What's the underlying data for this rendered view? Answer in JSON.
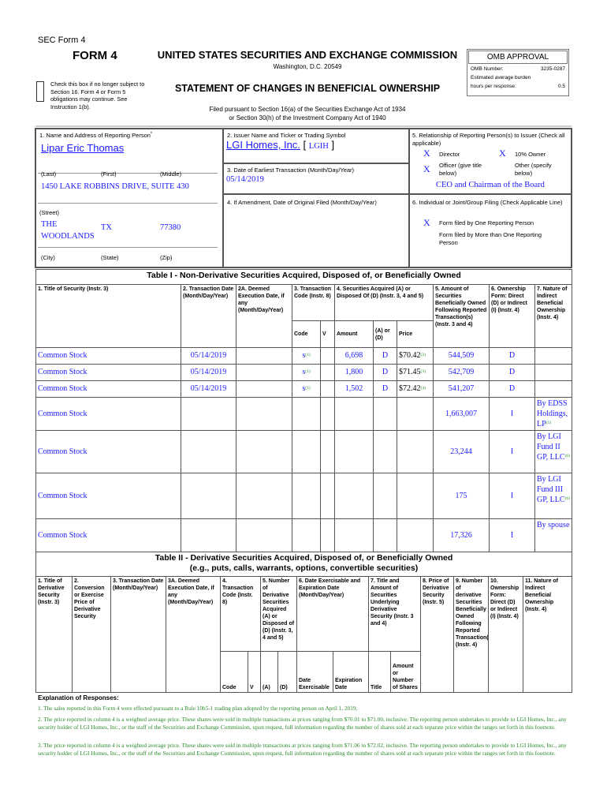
{
  "header": {
    "sec_form": "SEC Form 4",
    "form_title": "FORM 4",
    "agency": "UNITED STATES SECURITIES AND EXCHANGE COMMISSION",
    "location": "Washington, D.C. 20549",
    "statement_title": "STATEMENT OF CHANGES IN BENEFICIAL OWNERSHIP",
    "filed_line1": "Filed pursuant to Section 16(a) of the Securities Exchange Act of 1934",
    "filed_line2": "or Section 30(h) of the Investment Company Act of 1940",
    "checkbox_text": "Check this box if no longer subject to Section 16. Form 4 or Form 5 obligations may continue. See Instruction 1(b).",
    "omb": {
      "title": "OMB APPROVAL",
      "number_label": "OMB Number:",
      "number_value": "3235-0287",
      "burden_label": "Estimated average burden",
      "hours_label": "hours per response:",
      "hours_value": "0.5"
    }
  },
  "reporting_person": {
    "label": "1. Name and Address of Reporting Person",
    "label_mark": "*",
    "name": "Lipar Eric Thomas",
    "last_label": "(Last)",
    "first_label": "(First)",
    "middle_label": "(Middle)",
    "street": "1450 LAKE ROBBINS DRIVE, SUITE 430",
    "street_label": "(Street)",
    "city": "THE WOODLANDS",
    "state": "TX",
    "zip": "77380",
    "city_label": "(City)",
    "state_label": "(State)",
    "zip_label": "(Zip)"
  },
  "issuer": {
    "label": "2. Issuer Name and Ticker or Trading Symbol",
    "name": "LGI Homes, Inc.",
    "ticker": "LGIH",
    "date_label": "3. Date of Earliest Transaction (Month/Day/Year)",
    "date": "05/14/2019",
    "amendment_label": "4. If Amendment, Date of Original Filed (Month/Day/Year)"
  },
  "relationship": {
    "label": "5. Relationship of Reporting Person(s) to Issuer (Check all applicable)",
    "director": "Director",
    "owner10": "10% Owner",
    "officer": "Officer (give title below)",
    "other": "Other (specify below)",
    "mark": "X",
    "officer_title": "CEO and Chairman of the Board",
    "filing_label": "6. Individual or Joint/Group Filing (Check Applicable Line)",
    "filing_one": "Form filed by One Reporting Person",
    "filing_more": "Form filed by More than One Reporting Person"
  },
  "table1": {
    "title": "Table I - Non-Derivative Securities Acquired, Disposed of, or Beneficially Owned",
    "headers": {
      "c1": "1. Title of Security (Instr. 3)",
      "c2": "2. Transaction Date (Month/Day/Year)",
      "c2a": "2A. Deemed Execution Date, if any (Month/Day/Year)",
      "c3": "3. Transaction Code (Instr. 8)",
      "c4": "4. Securities Acquired (A) or Disposed Of (D) (Instr. 3, 4 and 5)",
      "c5": "5. Amount of Securities Beneficially Owned Following Reported Transaction(s) (Instr. 3 and 4)",
      "c6": "6. Ownership Form: Direct (D) or Indirect (I) (Instr. 4)",
      "c7": "7. Nature of Indirect Beneficial Ownership (Instr. 4)",
      "code": "Code",
      "v": "V",
      "amount": "Amount",
      "ad": "(A) or (D)",
      "price": "Price"
    },
    "rows": [
      {
        "title": "Common Stock",
        "date": "05/14/2019",
        "code": "S",
        "code_fn": "(1)",
        "amount": "6,698",
        "ad": "D",
        "price": "$70.42",
        "price_fn": "(2)",
        "owned": "544,509",
        "form": "D",
        "nature": "",
        "nature_fn": ""
      },
      {
        "title": "Common Stock",
        "date": "05/14/2019",
        "code": "S",
        "code_fn": "(1)",
        "amount": "1,800",
        "ad": "D",
        "price": "$71.45",
        "price_fn": "(3)",
        "owned": "542,709",
        "form": "D",
        "nature": "",
        "nature_fn": ""
      },
      {
        "title": "Common Stock",
        "date": "05/14/2019",
        "code": "S",
        "code_fn": "(1)",
        "amount": "1,502",
        "ad": "D",
        "price": "$72.42",
        "price_fn": "(4)",
        "owned": "541,207",
        "form": "D",
        "nature": "",
        "nature_fn": ""
      },
      {
        "title": "Common Stock",
        "date": "",
        "code": "",
        "code_fn": "",
        "amount": "",
        "ad": "",
        "price": "",
        "price_fn": "",
        "owned": "1,663,007",
        "form": "I",
        "nature": "By EDSS Holdings, LP",
        "nature_fn": "(5)"
      },
      {
        "title": "Common Stock",
        "date": "",
        "code": "",
        "code_fn": "",
        "amount": "",
        "ad": "",
        "price": "",
        "price_fn": "",
        "owned": "23,244",
        "form": "I",
        "nature": "By LGI Fund II GP, LLC",
        "nature_fn": "(6)"
      },
      {
        "title": "Common Stock",
        "date": "",
        "code": "",
        "code_fn": "",
        "amount": "",
        "ad": "",
        "price": "",
        "price_fn": "",
        "owned": "175",
        "form": "I",
        "nature": "By LGI Fund III GP, LLC",
        "nature_fn": "(6)"
      },
      {
        "title": "Common Stock",
        "date": "",
        "code": "",
        "code_fn": "",
        "amount": "",
        "ad": "",
        "price": "",
        "price_fn": "",
        "owned": "17,326",
        "form": "I",
        "nature": "By spouse",
        "nature_fn": ""
      }
    ]
  },
  "table2": {
    "title": "Table II - Derivative Securities Acquired, Disposed of, or Beneficially Owned",
    "subtitle": "(e.g., puts, calls, warrants, options, convertible securities)",
    "headers": {
      "c1": "1. Title of Derivative Security (Instr. 3)",
      "c2": "2. Conversion or Exercise Price of Derivative Security",
      "c3": "3. Transaction Date (Month/Day/Year)",
      "c3a": "3A. Deemed Execution Date, if any (Month/Day/Year)",
      "c4": "4. Transaction Code (Instr. 8)",
      "c5": "5. Number of Derivative Securities Acquired (A) or Disposed of (D) (Instr. 3, 4 and 5)",
      "c6": "6. Date Exercisable and Expiration Date (Month/Day/Year)",
      "c7": "7. Title and Amount of Securities Underlying Derivative Security (Instr. 3 and 4)",
      "c8": "8. Price of Derivative Security (Instr. 5)",
      "c9": "9. Number of derivative Securities Beneficially Owned Following Reported Transaction(s) (Instr. 4)",
      "c10": "10. Ownership Form: Direct (D) or Indirect (I) (Instr. 4)",
      "c11": "11. Nature of Indirect Beneficial Ownership (Instr. 4)",
      "code": "Code",
      "v": "V",
      "a": "(A)",
      "d": "(D)",
      "date_ex": "Date Exercisable",
      "exp": "Expiration Date",
      "title": "Title",
      "amount": "Amount or Number of Shares"
    }
  },
  "explanation": {
    "heading": "Explanation of Responses:",
    "footnotes": [
      "1. The sales reported in this Form 4 were effected pursuant to a Rule 10b5-1 trading plan adopted by the reporting person on April 1, 2019.",
      "2. The price reported in column 4 is a weighted average price. These shares were sold in multiple transactions at prices ranging from $70.01 to $71.00, inclusive. The reporting person undertakes to provide to LGI Homes, Inc., any security holder of LGI Homes, Inc., or the staff of the Securities and Exchange Commission, upon request, full information regarding the number of shares sold at each separate price within the ranges set forth in this footnote.",
      "3. The price reported in column 4 is a weighted average price. These shares were sold in multiple transactions at prices ranging from $71.06 to $72.02, inclusive. The reporting person undertakes to provide to LGI Homes, Inc., any security holder of LGI Homes, Inc., or the staff of the Securities and Exchange Commission, upon request, full information regarding the number of shares sold at each separate price within the ranges set forth in this footnote."
    ]
  },
  "colors": {
    "data_blue": "#1a1aff",
    "footnote_green": "#2a8a2a",
    "border": "#555555"
  }
}
